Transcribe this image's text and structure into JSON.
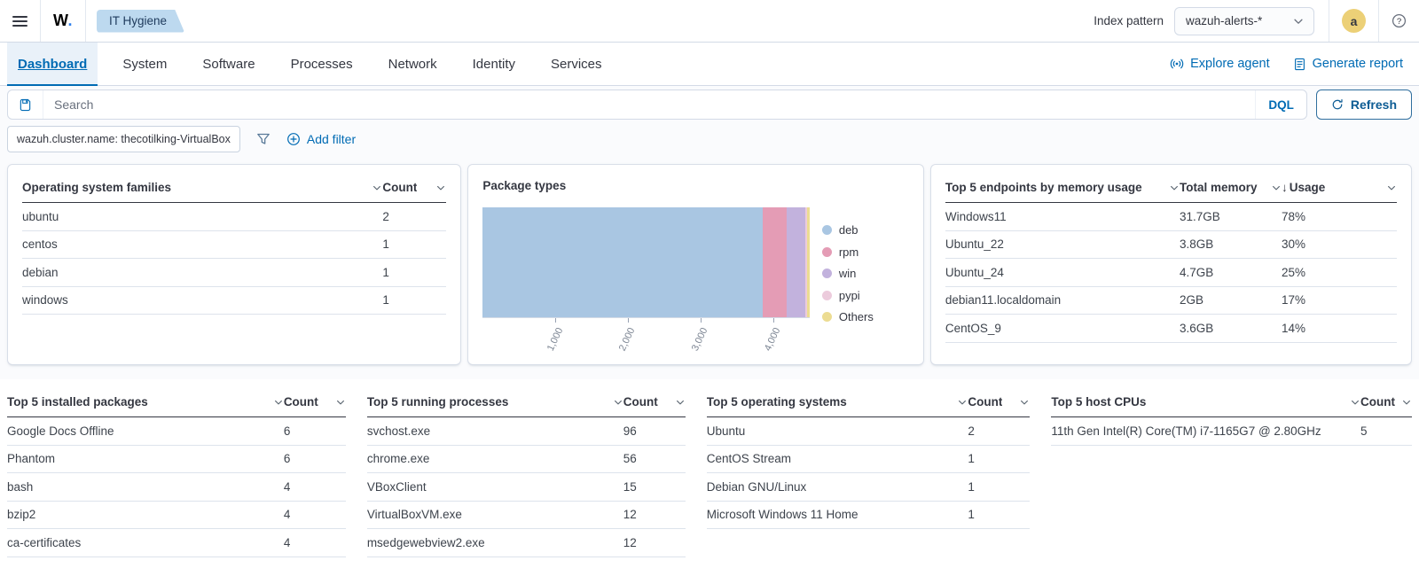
{
  "header": {
    "logo": "W",
    "logo_dot": ".",
    "breadcrumb": "IT Hygiene",
    "index_pattern_label": "Index pattern",
    "index_pattern_value": "wazuh-alerts-*",
    "avatar_initial": "a"
  },
  "nav": {
    "tabs": [
      {
        "label": "Dashboard"
      },
      {
        "label": "System"
      },
      {
        "label": "Software"
      },
      {
        "label": "Processes"
      },
      {
        "label": "Network"
      },
      {
        "label": "Identity"
      },
      {
        "label": "Services"
      }
    ],
    "explore_agent": "Explore agent",
    "generate_report": "Generate report"
  },
  "query_bar": {
    "search_placeholder": "Search",
    "language": "DQL",
    "refresh_label": "Refresh"
  },
  "filter_bar": {
    "filter_pill": "wazuh.cluster.name: thecotilking-VirtualBox",
    "add_filter_label": "Add filter"
  },
  "tables": {
    "os_families": {
      "columns": [
        {
          "label": "Operating system families"
        },
        {
          "label": "Count"
        }
      ],
      "rows": [
        [
          "ubuntu",
          "2"
        ],
        [
          "centos",
          "1"
        ],
        [
          "debian",
          "1"
        ],
        [
          "windows",
          "1"
        ]
      ]
    },
    "memory_usage": {
      "columns": [
        {
          "label": "Top 5 endpoints by memory usage"
        },
        {
          "label": "Total memory"
        },
        {
          "label": "Usage",
          "sort": "desc"
        }
      ],
      "rows": [
        [
          "Windows11",
          "31.7GB",
          "78%"
        ],
        [
          "Ubuntu_22",
          "3.8GB",
          "30%"
        ],
        [
          "Ubuntu_24",
          "4.7GB",
          "25%"
        ],
        [
          "debian11.localdomain",
          "2GB",
          "17%"
        ],
        [
          "CentOS_9",
          "3.6GB",
          "14%"
        ]
      ]
    },
    "installed_packages": {
      "columns": [
        {
          "label": "Top 5 installed packages"
        },
        {
          "label": "Count"
        }
      ],
      "rows": [
        [
          "Google Docs Offline",
          "6"
        ],
        [
          "Phantom",
          "6"
        ],
        [
          "bash",
          "4"
        ],
        [
          "bzip2",
          "4"
        ],
        [
          "ca-certificates",
          "4"
        ]
      ]
    },
    "running_processes": {
      "columns": [
        {
          "label": "Top 5 running processes"
        },
        {
          "label": "Count"
        }
      ],
      "rows": [
        [
          "svchost.exe",
          "96"
        ],
        [
          "chrome.exe",
          "56"
        ],
        [
          "VBoxClient",
          "15"
        ],
        [
          "VirtualBoxVM.exe",
          "12"
        ],
        [
          "msedgewebview2.exe",
          "12"
        ]
      ]
    },
    "operating_systems": {
      "columns": [
        {
          "label": "Top 5 operating systems"
        },
        {
          "label": "Count"
        }
      ],
      "rows": [
        [
          "Ubuntu",
          "2"
        ],
        [
          "CentOS Stream",
          "1"
        ],
        [
          "Debian GNU/Linux",
          "1"
        ],
        [
          "Microsoft Windows 11 Home",
          "1"
        ]
      ]
    },
    "host_cpus": {
      "columns": [
        {
          "label": "Top 5 host CPUs"
        },
        {
          "label": "Count"
        }
      ],
      "rows": [
        [
          "11th Gen Intel(R) Core(TM) i7-1165G7 @ 2.80GHz",
          "5"
        ]
      ]
    }
  },
  "chart_data": {
    "type": "bar",
    "orientation": "horizontal-stacked",
    "title": "Package types",
    "series": [
      {
        "name": "deb",
        "value": 3855,
        "color": "#a9c6e2"
      },
      {
        "name": "rpm",
        "value": 340,
        "color": "#e49cb5"
      },
      {
        "name": "win",
        "value": 245,
        "color": "#c2b2dd"
      },
      {
        "name": "pypi",
        "value": 35,
        "color": "#eccbdc"
      },
      {
        "name": "Others",
        "value": 30,
        "color": "#ecdc92"
      }
    ],
    "x_ticks": [
      {
        "value": 1000,
        "label": "1,000"
      },
      {
        "value": 2000,
        "label": "2,000"
      },
      {
        "value": 3000,
        "label": "3,000"
      },
      {
        "value": 4000,
        "label": "4,000"
      }
    ],
    "xlim": [
      0,
      4505
    ],
    "legend_position": "right",
    "grid": false
  },
  "colors": {
    "accent_blue": "#006bb4",
    "tag_bg": "#bdd9ef",
    "avatar_bg": "#ecd077",
    "card_border": "#d3dae6"
  }
}
